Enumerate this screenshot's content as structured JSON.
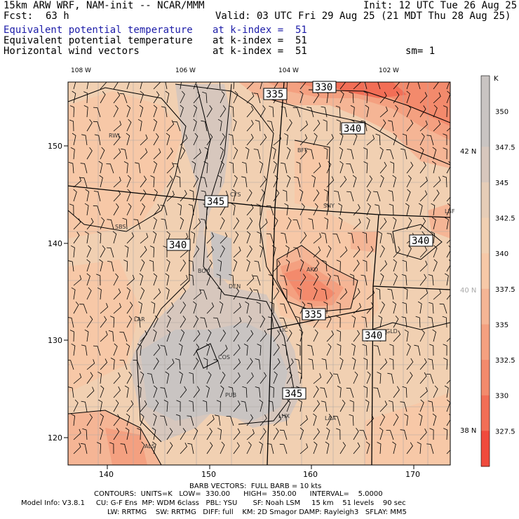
{
  "header": {
    "model": "15km ARW WRF, NAM-init -- NCAR/MMM",
    "init": "Init: 12 UTC Tue 26 Aug 25",
    "fcst_label": "Fcst:",
    "fcst_value": "63 h",
    "valid": "Valid: 03 UTC Fri 29 Aug 25 (21 MDT Thu 28 Aug 25)",
    "field1": "Equivalent potential temperature",
    "field1_level": "at k-index =  51",
    "field2": "Equivalent potential temperature",
    "field2_level": "at k-index =  51",
    "field3": "Horizontal wind vectors",
    "field3_level": "at k-index =  51",
    "smooth": "sm= 1"
  },
  "map": {
    "lon_labels": [
      "108 W",
      "106 W",
      "104 W",
      "102 W"
    ],
    "lat_labels": [
      "42 N",
      "40 N",
      "38 N"
    ],
    "y_ticks": [
      "150",
      "140",
      "130",
      "120"
    ],
    "x_ticks": [
      "140",
      "150",
      "160",
      "170"
    ],
    "stations": [
      "RWL",
      "BFF",
      "CYS",
      "SNY",
      "LBF",
      "SBS",
      "AKO",
      "BOU",
      "DEN",
      "LAR",
      "LIC",
      "GLD",
      "COS",
      "PUB",
      "LHX",
      "LAA",
      "ALS"
    ],
    "contour_labels": [
      "335",
      "330",
      "340",
      "345",
      "340",
      "340",
      "335",
      "340",
      "345"
    ]
  },
  "colorbar": {
    "unit": "K",
    "labels": [
      "350",
      "347.5",
      "345",
      "342.5",
      "340",
      "337.5",
      "335",
      "332.5",
      "330",
      "327.5"
    ],
    "colors": [
      "#c9c4c2",
      "#d7c7bd",
      "#e6cdb7",
      "#f1d0b2",
      "#f7c8a7",
      "#f5b595",
      "#f4a080",
      "#f38a6c",
      "#f26e56",
      "#f04a3c"
    ]
  },
  "footer": {
    "barb": "BARB VECTORS:  FULL BARB = 10 kts",
    "contours": "CONTOURS:  UNITS=K   LOW=  330.00      HIGH=  350.00      INTERVAL=    5.0000",
    "model_info": "Model Info: V3.8.1     CU: G-F Ens  MP: WDM 6class   PBL: YSU       SF: Noah LSM     15 km    51 levels    90 sec",
    "model_info2": "LW: RRTMG    SW: RRTMG   DIFF: full    KM: 2D Smagor DAMP: Rayleigh3   SFLAY: MM5"
  }
}
